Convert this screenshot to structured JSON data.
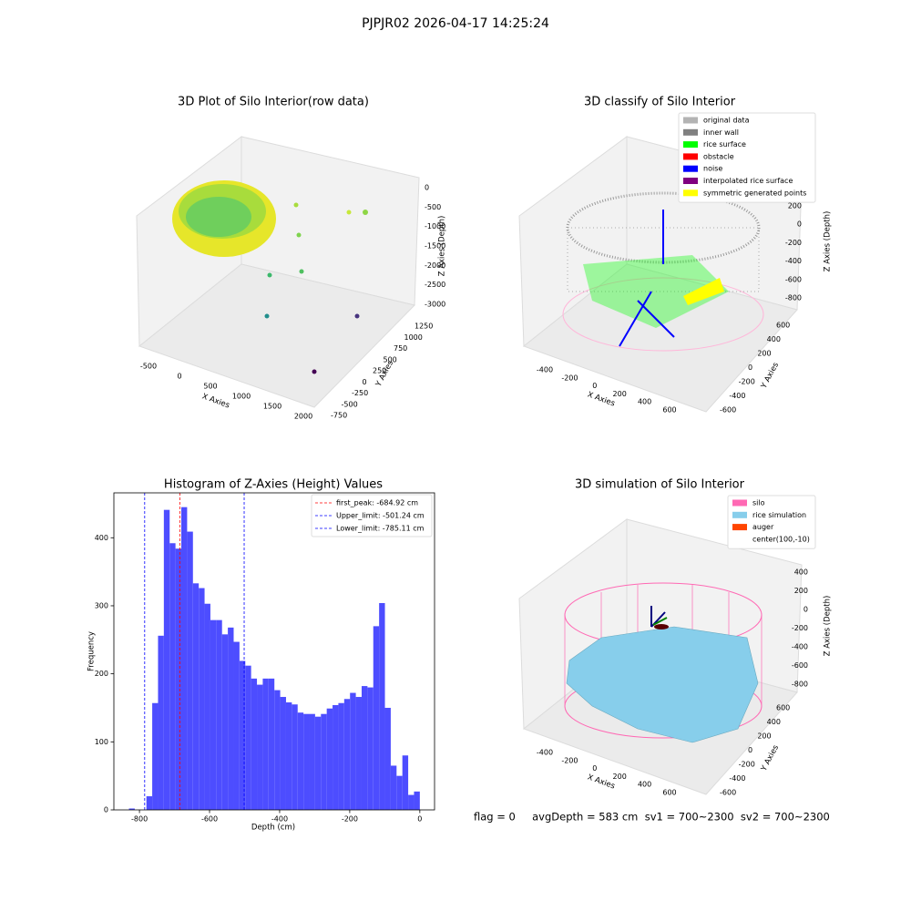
{
  "suptitle": "PJPJR02 2026-04-17 14:25:24",
  "footer": "flag = 0     avgDepth = 583 cm  sv1 = 700~2300  sv2 = 700~2300",
  "plot_raw": {
    "title": "3D Plot of Silo Interior(row data)",
    "xlabel": "X Axies",
    "ylabel": "Y Axies",
    "zlabel": "Z Axies (Depth)",
    "xticks": [
      -500,
      0,
      500,
      1000,
      1500,
      2000
    ],
    "yticks": [
      -750,
      -500,
      -250,
      0,
      250,
      500,
      750,
      1000,
      1250
    ],
    "zticks": [
      0,
      -500,
      -1000,
      -1500,
      -2000,
      -2500,
      -3000
    ]
  },
  "plot_classify": {
    "title": "3D classify of Silo Interior",
    "xlabel": "X Axies",
    "ylabel": "Y Axies",
    "zlabel": "Z Axies (Depth)",
    "xticks": [
      -400,
      -200,
      0,
      200,
      400,
      600
    ],
    "yticks": [
      -600,
      -400,
      -200,
      0,
      200,
      400,
      600
    ],
    "zticks": [
      200,
      0,
      -200,
      -400,
      -600,
      -800
    ],
    "legend": [
      {
        "name": "original data",
        "color": "#b3b3b3"
      },
      {
        "name": "inner wall",
        "color": "#808080"
      },
      {
        "name": "rice surface",
        "color": "#00ff00"
      },
      {
        "name": "obstacle",
        "color": "#ff0000"
      },
      {
        "name": "noise",
        "color": "#0000ff"
      },
      {
        "name": "interpolated rice surface",
        "color": "#800080"
      },
      {
        "name": "symmetric generated points",
        "color": "#ffff00"
      }
    ]
  },
  "chart_data": {
    "type": "histogram",
    "title": "Histogram of Z-Axies (Height) Values",
    "xlabel": "Depth (cm)",
    "ylabel": "Frequency",
    "color": "#4d4dff",
    "bins": [
      -830,
      -813.4,
      -796.8,
      -780.2,
      -763.6,
      -747,
      -730.4,
      -713.8,
      -697.2,
      -680.6,
      -664,
      -647.4,
      -630.8,
      -614.2,
      -597.6,
      -581,
      -564.4,
      -547.8,
      -531.2,
      -514.6,
      -498,
      -481.4,
      -464.8,
      -448.2,
      -431.6,
      -415,
      -398.4,
      -381.8,
      -365.2,
      -348.6,
      -332,
      -315.4,
      -298.8,
      -282.2,
      -265.6,
      -249,
      -232.4,
      -215.8,
      -199.2,
      -182.6,
      -166,
      -149.4,
      -132.8,
      -116.2,
      -99.6,
      -83,
      -66.4,
      -49.8,
      -33.2,
      -16.6,
      0
    ],
    "values": [
      2,
      0,
      0,
      20,
      157,
      256,
      441,
      392,
      384,
      445,
      409,
      333,
      326,
      303,
      279,
      279,
      258,
      268,
      247,
      219,
      212,
      193,
      184,
      193,
      193,
      176,
      166,
      158,
      155,
      143,
      141,
      141,
      137,
      141,
      149,
      154,
      157,
      163,
      172,
      166,
      182,
      180,
      270,
      304,
      150,
      65,
      50,
      80,
      22,
      27
    ],
    "xlim": [
      -873,
      42
    ],
    "ylim": [
      0,
      466
    ],
    "xticks": [
      -800,
      -600,
      -400,
      -200,
      0
    ],
    "yticks": [
      0,
      100,
      200,
      300,
      400
    ],
    "lines": [
      {
        "name": "first_peak: -684.92 cm",
        "value": -684.92,
        "color": "#ff0000"
      },
      {
        "name": "Upper_limit: -501.24 cm",
        "value": -501.24,
        "color": "#0000ff"
      },
      {
        "name": "Lower_limit: -785.11 cm",
        "value": -785.11,
        "color": "#0000ff"
      }
    ],
    "legend_position": "upper right"
  },
  "plot_sim": {
    "title": "3D simulation of Silo Interior",
    "xlabel": "X Axies",
    "ylabel": "Y Axies",
    "zlabel": "Z Axies (Depth)",
    "xticks": [
      -400,
      -200,
      0,
      200,
      400,
      600
    ],
    "yticks": [
      -600,
      -400,
      -200,
      0,
      200,
      400,
      600
    ],
    "zticks": [
      400,
      200,
      0,
      -200,
      -400,
      -600,
      -800
    ],
    "legend": [
      {
        "name": "silo",
        "color": "#ff69b4"
      },
      {
        "name": "rice simulation",
        "color": "#87ceeb"
      },
      {
        "name": "auger",
        "color": "#ff4500"
      },
      {
        "name": "center(100,-10)",
        "color": null
      }
    ]
  }
}
